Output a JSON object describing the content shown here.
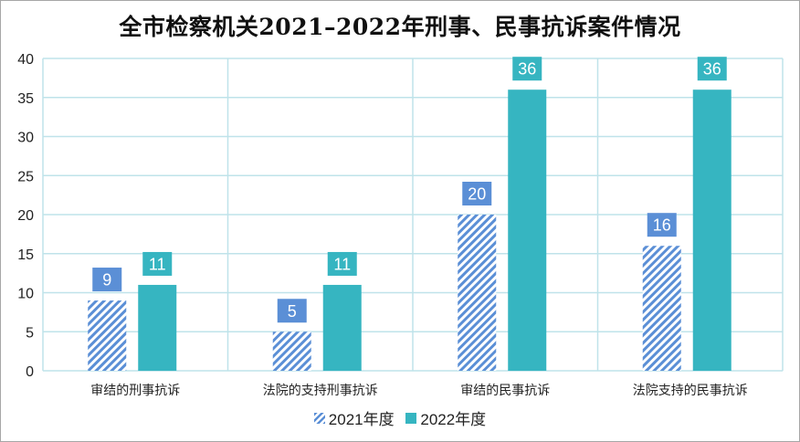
{
  "chart_data": {
    "type": "bar",
    "title": "全市检察机关2021–2022年刑事、民事抗诉案件情况",
    "categories": [
      "审结的刑事抗诉",
      "法院的支持刑事抗诉",
      "审结的民事抗诉",
      "法院支持的民事抗诉"
    ],
    "series": [
      {
        "name": "2021年度",
        "values": [
          9,
          5,
          20,
          16
        ],
        "color": "#5b8fd6",
        "pattern": "diagonal-hatch"
      },
      {
        "name": "2022年度",
        "values": [
          11,
          11,
          36,
          36
        ],
        "color": "#36b5c1",
        "pattern": "solid"
      }
    ],
    "ylim": [
      0,
      40
    ],
    "yticks": [
      0,
      5,
      10,
      15,
      20,
      25,
      30,
      35,
      40
    ],
    "grid": true,
    "legend": "bottom",
    "data_labels": true
  }
}
